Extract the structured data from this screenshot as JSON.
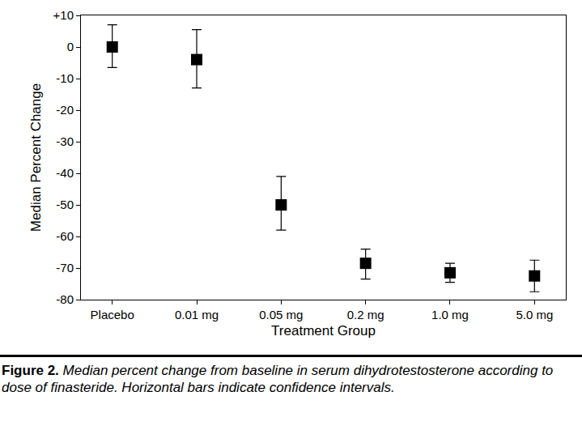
{
  "chart_data": {
    "type": "scatter",
    "x_label": "Treatment Group",
    "y_label": "Median Percent Change",
    "caption_label": "Figure 2.",
    "caption": "Median percent change from baseline in serum dihydrotestosterone according to dose of finasteride. Horizontal bars indicate confidence intervals.",
    "categories": [
      "Placebo",
      "0.01 mg",
      "0.05 mg",
      "0.2 mg",
      "1.0 mg",
      "5.0 mg"
    ],
    "values": [
      0,
      -4,
      -50,
      -68.5,
      -71.5,
      -72.5
    ],
    "ci_low": [
      -6.5,
      -13,
      -58,
      -73.5,
      -74.5,
      -77.5
    ],
    "ci_high": [
      7,
      5.5,
      -41,
      -64,
      -68.5,
      -67.5
    ],
    "color": "#000000",
    "marker": "square",
    "ylim": [
      -80,
      10
    ],
    "yticks": [
      -80,
      -70,
      -60,
      -50,
      -40,
      -30,
      -20,
      -10,
      0,
      {
        "value": 10,
        "label": "+10"
      }
    ],
    "grid": false
  }
}
